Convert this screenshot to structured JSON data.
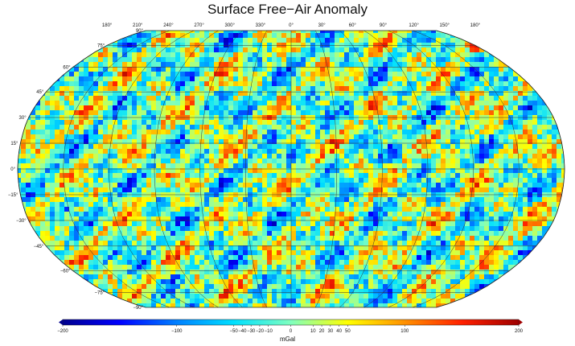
{
  "title": "Surface Free−Air Anomaly",
  "map": {
    "projection": "Robinson",
    "central_meridian": 0,
    "lon_labels": [
      "180°",
      "210°",
      "240°",
      "270°",
      "300°",
      "330°",
      "0°",
      "30°",
      "60°",
      "90°",
      "120°",
      "150°",
      "180°"
    ],
    "lat_labels": [
      "90°",
      "75°",
      "60°",
      "45°",
      "30°",
      "15°",
      "0°",
      "−15°",
      "−30°",
      "−45°",
      "−60°",
      "−75°",
      "−90°"
    ],
    "graticule_spacing_deg": 15
  },
  "colorbar": {
    "unit": "mGal",
    "range": [
      -200,
      200
    ],
    "tick_labels": [
      "−200",
      "−100",
      "−50",
      "−40",
      "−30",
      "−20",
      "−10",
      "0",
      "10",
      "20",
      "30",
      "40",
      "50",
      "100",
      "200"
    ],
    "tick_values": [
      -200,
      -100,
      -50,
      -40,
      -30,
      -20,
      -10,
      0,
      10,
      20,
      30,
      40,
      50,
      100,
      200
    ],
    "colors": [
      "#00008f",
      "#0000ff",
      "#0080ff",
      "#00e0ff",
      "#7fffbf",
      "#ffff00",
      "#ff9000",
      "#ff2000",
      "#a00000"
    ]
  }
}
